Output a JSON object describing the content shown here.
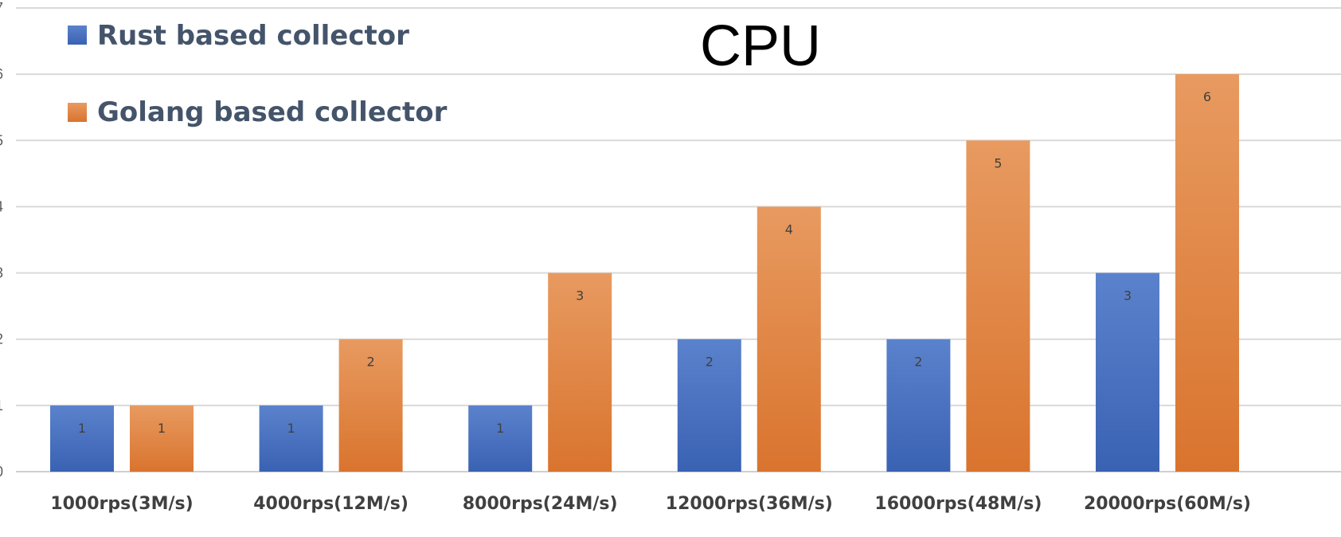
{
  "chart_data": {
    "type": "bar",
    "title": "CPU",
    "xlabel": "",
    "ylabel": "",
    "categories": [
      "1000rps(3M/s)",
      "4000rps(12M/s)",
      "8000rps(24M/s)",
      "12000rps(36M/s)",
      "16000rps(48M/s)",
      "20000rps(60M/s)"
    ],
    "series": [
      {
        "name": "Rust based collector",
        "color": "#4472c4",
        "values": [
          1,
          1,
          1,
          2,
          2,
          3
        ]
      },
      {
        "name": "Golang based collector",
        "color": "#ed7d31",
        "values": [
          1,
          2,
          3,
          4,
          5,
          6
        ]
      }
    ],
    "ylim": [
      0,
      7
    ],
    "yticks": [
      0,
      1,
      2,
      3,
      4,
      5,
      6,
      7
    ],
    "grid": true,
    "legend_position": "top-left",
    "data_labels": true
  }
}
